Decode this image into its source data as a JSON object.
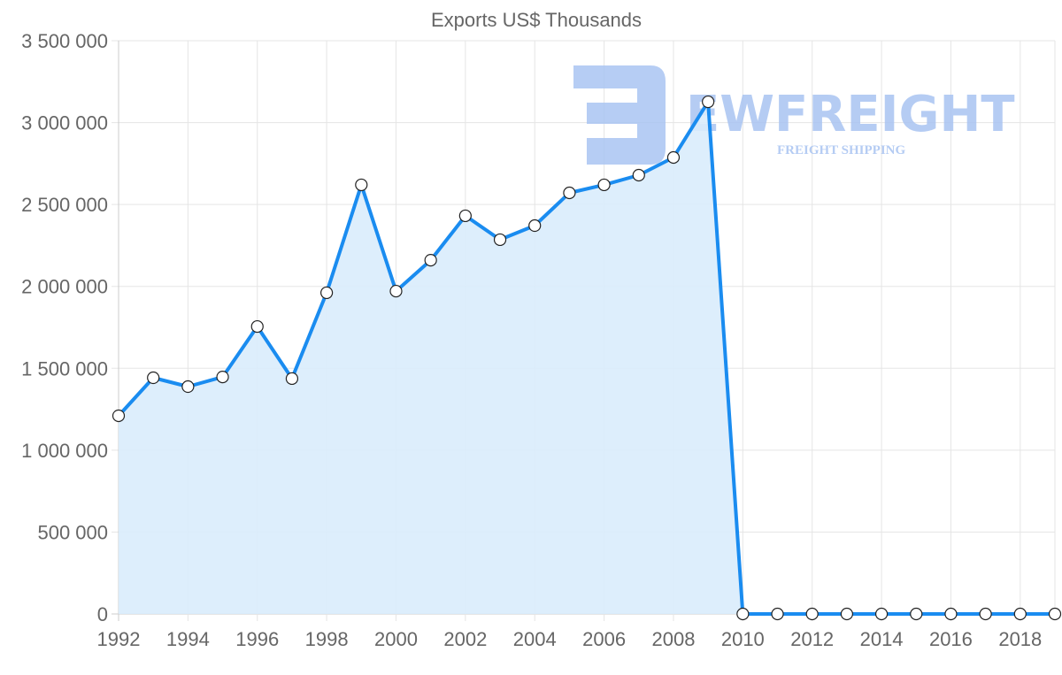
{
  "chart_data": {
    "type": "line",
    "title": "Exports US$ Thousands",
    "xlabel": "",
    "ylabel": "",
    "x": [
      1992,
      1993,
      1994,
      1995,
      1996,
      1997,
      1998,
      1999,
      2000,
      2001,
      2002,
      2003,
      2004,
      2005,
      2006,
      2007,
      2008,
      2009,
      2010,
      2011,
      2012,
      2013,
      2014,
      2015,
      2016,
      2017,
      2018,
      2019
    ],
    "series": [
      {
        "name": "Exports US$ Thousands",
        "values": [
          1210000,
          1442000,
          1388000,
          1447000,
          1755000,
          1437000,
          1961000,
          2620000,
          1971000,
          2160000,
          2431000,
          2285000,
          2371000,
          2571000,
          2620000,
          2679000,
          2787000,
          3127000,
          0,
          0,
          0,
          0,
          0,
          0,
          0,
          0,
          0,
          0
        ]
      }
    ],
    "xlim": [
      1992,
      2019
    ],
    "ylim": [
      0,
      3500000
    ],
    "x_ticks": [
      "1992",
      "1994",
      "1996",
      "1998",
      "2000",
      "2002",
      "2004",
      "2006",
      "2008",
      "2010",
      "2012",
      "2014",
      "2016",
      "2018"
    ],
    "y_ticks": [
      "0",
      "500 000",
      "1 000 000",
      "1 500 000",
      "2 000 000",
      "2 500 000",
      "3 000 000",
      "3 500 000"
    ],
    "grid": true,
    "filled": true,
    "colors": {
      "line": "#1a8cf0",
      "fill": "#d9ecfc",
      "grid": "#e5e5e5",
      "watermark": "#a9c4f2"
    }
  },
  "watermark": {
    "brand": "EWFREIGHT",
    "tagline": "FREIGHT SHIPPING"
  }
}
